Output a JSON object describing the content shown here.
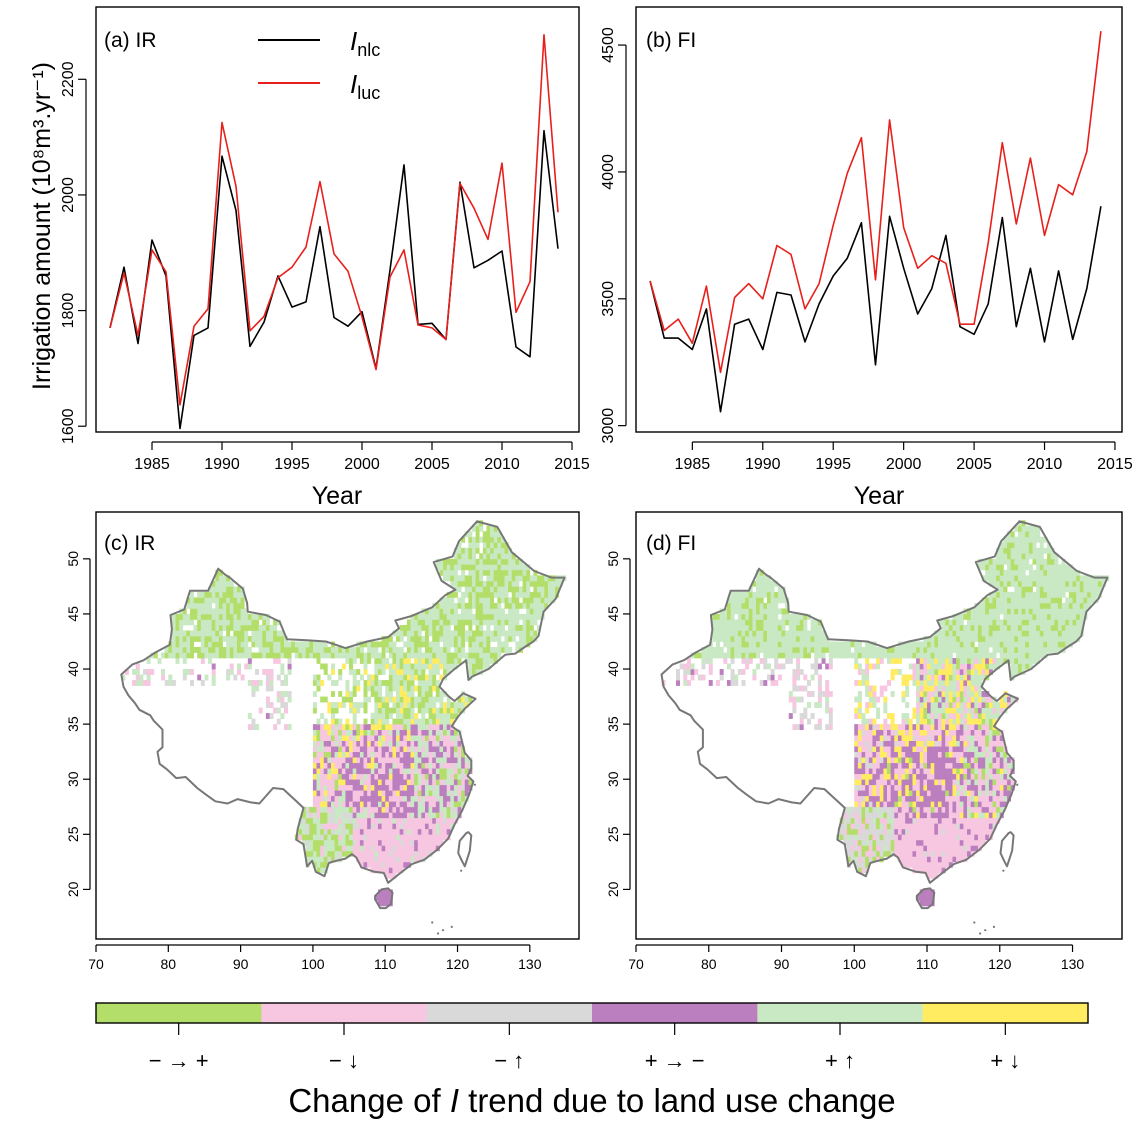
{
  "colors": {
    "nlc": "#000000",
    "luc": "#e8201c",
    "neg_to_pos": "#b3de69",
    "neg_down": "#f7c6e0",
    "neg_up": "#d9d9d9",
    "pos_to_neg": "#bb7fbf",
    "pos_up": "#c9e8c4",
    "pos_down": "#ffec60",
    "outline": "#777777"
  },
  "chart_data": [
    {
      "panel": "a",
      "type": "line",
      "title": "(a) IR",
      "xlabel": "Year",
      "ylabel": "Irrigation amount (10⁸m³.yr⁻¹)",
      "xlim": [
        1981,
        2015.5
      ],
      "ylim": [
        1590,
        2325
      ],
      "xticks": [
        1985,
        1990,
        1995,
        2000,
        2005,
        2010,
        2015
      ],
      "yticks": [
        1600,
        1800,
        2000,
        2200
      ],
      "legend": {
        "position": "top-center",
        "entries": [
          {
            "main": "I",
            "sub": "nlc"
          },
          {
            "main": "I",
            "sub": "luc"
          }
        ]
      },
      "x": [
        1982,
        1983,
        1984,
        1985,
        1986,
        1987,
        1988,
        1989,
        1990,
        1991,
        1992,
        1993,
        1994,
        1995,
        1996,
        1997,
        1998,
        1999,
        2000,
        2001,
        2002,
        2003,
        2004,
        2005,
        2006,
        2007,
        2008,
        2009,
        2010,
        2011,
        2012,
        2013,
        2014
      ],
      "series": [
        {
          "name": "nlc",
          "values": [
            1770,
            1875,
            1743,
            1922,
            1860,
            1596,
            1757,
            1770,
            2067,
            1973,
            1738,
            1780,
            1860,
            1806,
            1815,
            1945,
            1788,
            1773,
            1798,
            1700,
            1870,
            2052,
            1776,
            1778,
            1750,
            2022,
            1874,
            1887,
            1903,
            1737,
            1720,
            2111,
            1907
          ]
        },
        {
          "name": "luc",
          "values": [
            1770,
            1865,
            1757,
            1905,
            1867,
            1637,
            1773,
            1803,
            2125,
            2015,
            1765,
            1790,
            1857,
            1875,
            1910,
            2023,
            1898,
            1868,
            1789,
            1698,
            1858,
            1905,
            1775,
            1770,
            1750,
            2020,
            1977,
            1923,
            2055,
            1797,
            1850,
            2277,
            1970
          ]
        }
      ]
    },
    {
      "panel": "b",
      "type": "line",
      "title": "(b) FI",
      "xlabel": "Year",
      "ylabel": "",
      "xlim": [
        1981,
        2015.5
      ],
      "ylim": [
        2975,
        4650
      ],
      "xticks": [
        1985,
        1990,
        1995,
        2000,
        2005,
        2010,
        2015
      ],
      "yticks": [
        3000,
        3500,
        4000,
        4500
      ],
      "x": [
        1982,
        1983,
        1984,
        1985,
        1986,
        1987,
        1988,
        1989,
        1990,
        1991,
        1992,
        1993,
        1994,
        1995,
        1996,
        1997,
        1998,
        1999,
        2000,
        2001,
        2002,
        2003,
        2004,
        2005,
        2006,
        2007,
        2008,
        2009,
        2010,
        2011,
        2012,
        2013,
        2014
      ],
      "series": [
        {
          "name": "nlc",
          "values": [
            3570,
            3345,
            3345,
            3300,
            3460,
            3055,
            3400,
            3420,
            3300,
            3525,
            3515,
            3330,
            3480,
            3590,
            3660,
            3800,
            3240,
            3825,
            3620,
            3440,
            3540,
            3750,
            3390,
            3360,
            3480,
            3820,
            3390,
            3620,
            3330,
            3610,
            3340,
            3540,
            3865
          ]
        },
        {
          "name": "luc",
          "values": [
            3570,
            3375,
            3420,
            3325,
            3550,
            3210,
            3505,
            3560,
            3500,
            3710,
            3675,
            3460,
            3560,
            3790,
            3995,
            4135,
            3575,
            4205,
            3780,
            3620,
            3670,
            3640,
            3400,
            3400,
            3720,
            4115,
            3795,
            4055,
            3750,
            3950,
            3910,
            4080,
            4555
          ]
        }
      ]
    }
  ],
  "maps": {
    "c": {
      "title": "(c) IR"
    },
    "d": {
      "title": "(d) FI"
    },
    "xticks": [
      "70",
      "80",
      "90",
      "100",
      "110",
      "120",
      "130"
    ],
    "yticks": [
      "20",
      "25",
      "30",
      "35",
      "40",
      "45",
      "50"
    ]
  },
  "colorbar": {
    "categories": [
      {
        "key": "neg_to_pos",
        "label": "− → +"
      },
      {
        "key": "neg_down",
        "label": "− ↓"
      },
      {
        "key": "neg_up",
        "label": "− ↑"
      },
      {
        "key": "pos_to_neg",
        "label": "+ → −"
      },
      {
        "key": "pos_up",
        "label": "+ ↑"
      },
      {
        "key": "pos_down",
        "label": "+ ↓"
      }
    ],
    "title_before": "Change of ",
    "title_symbol": "I",
    "title_after": " trend due to land use change"
  }
}
